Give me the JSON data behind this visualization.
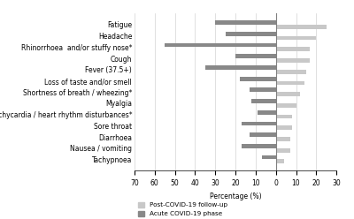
{
  "categories": [
    "Tachypnoea",
    "Nausea / vomiting",
    "Diarrhoea",
    "Sore throat",
    "Tachycardia / heart rhythm disturbances*",
    "Myalgia",
    "Shortness of breath / wheezing*",
    "Loss of taste and/or smell",
    "Fever (37.5+)",
    "Cough",
    "Rhinorrhoea  and/or stuffy nose*",
    "Headache",
    "Fatigue"
  ],
  "acute_values": [
    7,
    17,
    13,
    17,
    9,
    12,
    13,
    18,
    35,
    20,
    55,
    25,
    30
  ],
  "followup_values": [
    4,
    7,
    7,
    8,
    8,
    10,
    12,
    14,
    15,
    17,
    17,
    20,
    25
  ],
  "acute_color": "#888888",
  "followup_color": "#c8c8c8",
  "xlabel": "Percentage (%)",
  "xlim_left": 70,
  "xlim_right": 30,
  "xticks_left": [
    70,
    60,
    50,
    40,
    30,
    20,
    10
  ],
  "xticks_right": [
    10,
    20,
    30
  ],
  "legend_followup": "Post-COVID-19 follow-up",
  "legend_acute": "Acute COVID-19 phase",
  "background_color": "#ffffff",
  "label_fontsize": 5.5,
  "tick_fontsize": 5.5,
  "legend_fontsize": 5.2
}
